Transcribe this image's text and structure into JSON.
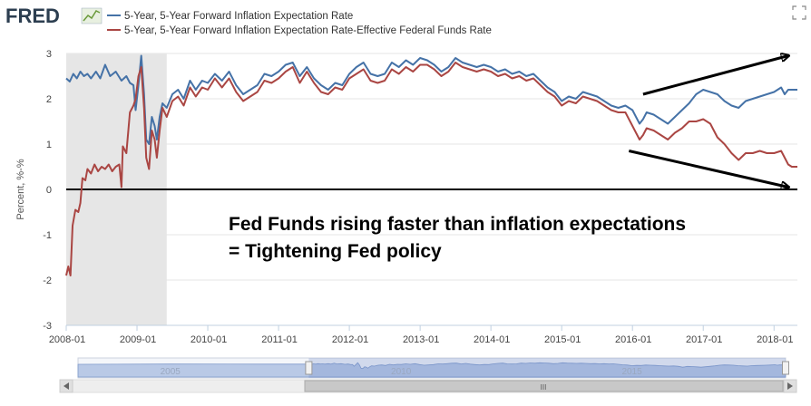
{
  "header": {
    "logo_text": "FRED",
    "logo_icon": "line-chart-icon",
    "fullscreen_icon": "fullscreen-icon"
  },
  "legend": [
    {
      "label": "5-Year, 5-Year Forward Inflation Expectation Rate",
      "color": "#4572a7"
    },
    {
      "label": "5-Year, 5-Year Forward Inflation Expectation Rate-Effective Federal Funds Rate",
      "color": "#aa4643"
    }
  ],
  "chart_data": {
    "type": "line",
    "title": "",
    "xlabel": "",
    "ylabel": "Percent, %-%",
    "ylim": [
      -3,
      3
    ],
    "yticks": [
      3,
      2,
      1,
      0,
      -1,
      -2,
      -3
    ],
    "xlim": [
      2008.0,
      2018.33
    ],
    "xticks": [
      {
        "label": "2008-01",
        "value": 2008.0
      },
      {
        "label": "2009-01",
        "value": 2009.0
      },
      {
        "label": "2010-01",
        "value": 2010.0
      },
      {
        "label": "2011-01",
        "value": 2011.0
      },
      {
        "label": "2012-01",
        "value": 2012.0
      },
      {
        "label": "2013-01",
        "value": 2013.0
      },
      {
        "label": "2014-01",
        "value": 2014.0
      },
      {
        "label": "2015-01",
        "value": 2015.0
      },
      {
        "label": "2016-01",
        "value": 2016.0
      },
      {
        "label": "2017-01",
        "value": 2017.0
      },
      {
        "label": "2018-01",
        "value": 2018.0
      }
    ],
    "recession": {
      "start": 2008.0,
      "end": 2009.42,
      "color": "#e6e6e6"
    },
    "zero_line": 0,
    "series": [
      {
        "name": "5-Year, 5-Year Forward Inflation Expectation Rate",
        "color": "#4572a7",
        "points": [
          [
            2008.0,
            2.45
          ],
          [
            2008.05,
            2.38
          ],
          [
            2008.1,
            2.55
          ],
          [
            2008.15,
            2.45
          ],
          [
            2008.2,
            2.6
          ],
          [
            2008.25,
            2.5
          ],
          [
            2008.3,
            2.55
          ],
          [
            2008.35,
            2.45
          ],
          [
            2008.42,
            2.6
          ],
          [
            2008.48,
            2.45
          ],
          [
            2008.55,
            2.75
          ],
          [
            2008.62,
            2.5
          ],
          [
            2008.7,
            2.6
          ],
          [
            2008.78,
            2.4
          ],
          [
            2008.85,
            2.5
          ],
          [
            2008.9,
            2.35
          ],
          [
            2008.95,
            2.3
          ],
          [
            2008.98,
            1.75
          ],
          [
            2009.02,
            2.3
          ],
          [
            2009.06,
            2.95
          ],
          [
            2009.1,
            2.1
          ],
          [
            2009.13,
            1.1
          ],
          [
            2009.17,
            1.0
          ],
          [
            2009.21,
            1.6
          ],
          [
            2009.25,
            1.4
          ],
          [
            2009.28,
            1.1
          ],
          [
            2009.32,
            1.6
          ],
          [
            2009.36,
            1.9
          ],
          [
            2009.42,
            1.8
          ],
          [
            2009.5,
            2.1
          ],
          [
            2009.58,
            2.2
          ],
          [
            2009.66,
            2.0
          ],
          [
            2009.75,
            2.4
          ],
          [
            2009.83,
            2.2
          ],
          [
            2009.92,
            2.4
          ],
          [
            2010.0,
            2.35
          ],
          [
            2010.1,
            2.55
          ],
          [
            2010.2,
            2.4
          ],
          [
            2010.3,
            2.6
          ],
          [
            2010.4,
            2.3
          ],
          [
            2010.5,
            2.1
          ],
          [
            2010.6,
            2.2
          ],
          [
            2010.7,
            2.3
          ],
          [
            2010.8,
            2.55
          ],
          [
            2010.9,
            2.5
          ],
          [
            2011.0,
            2.6
          ],
          [
            2011.1,
            2.75
          ],
          [
            2011.2,
            2.8
          ],
          [
            2011.3,
            2.5
          ],
          [
            2011.4,
            2.7
          ],
          [
            2011.5,
            2.45
          ],
          [
            2011.6,
            2.3
          ],
          [
            2011.7,
            2.2
          ],
          [
            2011.8,
            2.35
          ],
          [
            2011.9,
            2.3
          ],
          [
            2012.0,
            2.55
          ],
          [
            2012.1,
            2.7
          ],
          [
            2012.2,
            2.8
          ],
          [
            2012.3,
            2.55
          ],
          [
            2012.4,
            2.5
          ],
          [
            2012.5,
            2.55
          ],
          [
            2012.6,
            2.8
          ],
          [
            2012.7,
            2.7
          ],
          [
            2012.8,
            2.85
          ],
          [
            2012.9,
            2.75
          ],
          [
            2013.0,
            2.9
          ],
          [
            2013.1,
            2.85
          ],
          [
            2013.2,
            2.75
          ],
          [
            2013.3,
            2.6
          ],
          [
            2013.4,
            2.7
          ],
          [
            2013.5,
            2.9
          ],
          [
            2013.6,
            2.8
          ],
          [
            2013.7,
            2.75
          ],
          [
            2013.8,
            2.7
          ],
          [
            2013.9,
            2.75
          ],
          [
            2014.0,
            2.7
          ],
          [
            2014.1,
            2.6
          ],
          [
            2014.2,
            2.65
          ],
          [
            2014.3,
            2.55
          ],
          [
            2014.4,
            2.6
          ],
          [
            2014.5,
            2.5
          ],
          [
            2014.6,
            2.55
          ],
          [
            2014.7,
            2.4
          ],
          [
            2014.8,
            2.25
          ],
          [
            2014.9,
            2.15
          ],
          [
            2015.0,
            1.95
          ],
          [
            2015.1,
            2.05
          ],
          [
            2015.2,
            2.0
          ],
          [
            2015.3,
            2.15
          ],
          [
            2015.4,
            2.1
          ],
          [
            2015.5,
            2.05
          ],
          [
            2015.6,
            1.95
          ],
          [
            2015.7,
            1.85
          ],
          [
            2015.8,
            1.8
          ],
          [
            2015.9,
            1.85
          ],
          [
            2016.0,
            1.75
          ],
          [
            2016.05,
            1.6
          ],
          [
            2016.1,
            1.45
          ],
          [
            2016.15,
            1.55
          ],
          [
            2016.2,
            1.7
          ],
          [
            2016.3,
            1.65
          ],
          [
            2016.4,
            1.55
          ],
          [
            2016.5,
            1.45
          ],
          [
            2016.6,
            1.6
          ],
          [
            2016.7,
            1.75
          ],
          [
            2016.8,
            1.9
          ],
          [
            2016.9,
            2.1
          ],
          [
            2017.0,
            2.2
          ],
          [
            2017.1,
            2.15
          ],
          [
            2017.2,
            2.1
          ],
          [
            2017.3,
            1.95
          ],
          [
            2017.4,
            1.85
          ],
          [
            2017.5,
            1.8
          ],
          [
            2017.6,
            1.95
          ],
          [
            2017.7,
            2.0
          ],
          [
            2017.8,
            2.05
          ],
          [
            2017.9,
            2.1
          ],
          [
            2018.0,
            2.15
          ],
          [
            2018.1,
            2.25
          ],
          [
            2018.15,
            2.1
          ],
          [
            2018.2,
            2.2
          ],
          [
            2018.25,
            2.2
          ],
          [
            2018.33,
            2.2
          ]
        ]
      },
      {
        "name": "5-Year, 5-Year Forward Inflation Expectation Rate-Effective Federal Funds Rate",
        "color": "#aa4643",
        "points": [
          [
            2008.0,
            -1.9
          ],
          [
            2008.03,
            -1.7
          ],
          [
            2008.06,
            -1.9
          ],
          [
            2008.09,
            -0.8
          ],
          [
            2008.13,
            -0.45
          ],
          [
            2008.17,
            -0.5
          ],
          [
            2008.2,
            -0.3
          ],
          [
            2008.23,
            0.25
          ],
          [
            2008.27,
            0.2
          ],
          [
            2008.3,
            0.45
          ],
          [
            2008.35,
            0.35
          ],
          [
            2008.4,
            0.55
          ],
          [
            2008.45,
            0.4
          ],
          [
            2008.5,
            0.5
          ],
          [
            2008.55,
            0.45
          ],
          [
            2008.6,
            0.55
          ],
          [
            2008.65,
            0.4
          ],
          [
            2008.7,
            0.5
          ],
          [
            2008.75,
            0.55
          ],
          [
            2008.78,
            0.05
          ],
          [
            2008.8,
            0.95
          ],
          [
            2008.85,
            0.8
          ],
          [
            2008.9,
            1.7
          ],
          [
            2008.95,
            1.85
          ],
          [
            2008.98,
            2.0
          ],
          [
            2009.02,
            2.5
          ],
          [
            2009.06,
            2.7
          ],
          [
            2009.1,
            1.8
          ],
          [
            2009.13,
            0.7
          ],
          [
            2009.17,
            0.45
          ],
          [
            2009.21,
            1.3
          ],
          [
            2009.25,
            1.1
          ],
          [
            2009.28,
            0.7
          ],
          [
            2009.32,
            1.3
          ],
          [
            2009.36,
            1.8
          ],
          [
            2009.42,
            1.6
          ],
          [
            2009.5,
            1.95
          ],
          [
            2009.58,
            2.05
          ],
          [
            2009.66,
            1.85
          ],
          [
            2009.75,
            2.25
          ],
          [
            2009.83,
            2.05
          ],
          [
            2009.92,
            2.25
          ],
          [
            2010.0,
            2.2
          ],
          [
            2010.1,
            2.45
          ],
          [
            2010.2,
            2.25
          ],
          [
            2010.3,
            2.45
          ],
          [
            2010.4,
            2.15
          ],
          [
            2010.5,
            1.95
          ],
          [
            2010.6,
            2.05
          ],
          [
            2010.7,
            2.15
          ],
          [
            2010.8,
            2.4
          ],
          [
            2010.9,
            2.35
          ],
          [
            2011.0,
            2.45
          ],
          [
            2011.1,
            2.6
          ],
          [
            2011.2,
            2.7
          ],
          [
            2011.3,
            2.35
          ],
          [
            2011.4,
            2.6
          ],
          [
            2011.5,
            2.35
          ],
          [
            2011.6,
            2.15
          ],
          [
            2011.7,
            2.1
          ],
          [
            2011.8,
            2.25
          ],
          [
            2011.9,
            2.2
          ],
          [
            2012.0,
            2.45
          ],
          [
            2012.1,
            2.55
          ],
          [
            2012.2,
            2.65
          ],
          [
            2012.3,
            2.4
          ],
          [
            2012.4,
            2.35
          ],
          [
            2012.5,
            2.4
          ],
          [
            2012.6,
            2.65
          ],
          [
            2012.7,
            2.55
          ],
          [
            2012.8,
            2.7
          ],
          [
            2012.9,
            2.6
          ],
          [
            2013.0,
            2.75
          ],
          [
            2013.1,
            2.75
          ],
          [
            2013.2,
            2.65
          ],
          [
            2013.3,
            2.5
          ],
          [
            2013.4,
            2.6
          ],
          [
            2013.5,
            2.8
          ],
          [
            2013.6,
            2.7
          ],
          [
            2013.7,
            2.65
          ],
          [
            2013.8,
            2.6
          ],
          [
            2013.9,
            2.65
          ],
          [
            2014.0,
            2.6
          ],
          [
            2014.1,
            2.5
          ],
          [
            2014.2,
            2.55
          ],
          [
            2014.3,
            2.45
          ],
          [
            2014.4,
            2.5
          ],
          [
            2014.5,
            2.4
          ],
          [
            2014.6,
            2.45
          ],
          [
            2014.7,
            2.3
          ],
          [
            2014.8,
            2.15
          ],
          [
            2014.9,
            2.05
          ],
          [
            2015.0,
            1.85
          ],
          [
            2015.1,
            1.95
          ],
          [
            2015.2,
            1.9
          ],
          [
            2015.3,
            2.05
          ],
          [
            2015.4,
            2.0
          ],
          [
            2015.5,
            1.95
          ],
          [
            2015.6,
            1.85
          ],
          [
            2015.7,
            1.75
          ],
          [
            2015.8,
            1.7
          ],
          [
            2015.9,
            1.7
          ],
          [
            2016.0,
            1.4
          ],
          [
            2016.05,
            1.25
          ],
          [
            2016.1,
            1.1
          ],
          [
            2016.15,
            1.2
          ],
          [
            2016.2,
            1.35
          ],
          [
            2016.3,
            1.3
          ],
          [
            2016.4,
            1.2
          ],
          [
            2016.5,
            1.1
          ],
          [
            2016.6,
            1.25
          ],
          [
            2016.7,
            1.35
          ],
          [
            2016.8,
            1.5
          ],
          [
            2016.9,
            1.5
          ],
          [
            2017.0,
            1.55
          ],
          [
            2017.1,
            1.45
          ],
          [
            2017.2,
            1.15
          ],
          [
            2017.3,
            1.0
          ],
          [
            2017.4,
            0.8
          ],
          [
            2017.5,
            0.65
          ],
          [
            2017.6,
            0.8
          ],
          [
            2017.7,
            0.8
          ],
          [
            2017.8,
            0.85
          ],
          [
            2017.9,
            0.8
          ],
          [
            2018.0,
            0.8
          ],
          [
            2018.1,
            0.85
          ],
          [
            2018.15,
            0.7
          ],
          [
            2018.2,
            0.55
          ],
          [
            2018.25,
            0.5
          ],
          [
            2018.33,
            0.5
          ]
        ]
      }
    ],
    "annotations": {
      "text_lines": [
        "Fed Funds rising faster than inflation expectations",
        "= Tightening Fed policy"
      ],
      "arrows": [
        {
          "from": [
            2016.15,
            2.1
          ],
          "to": [
            2018.2,
            2.95
          ]
        },
        {
          "from": [
            2015.95,
            0.85
          ],
          "to": [
            2018.2,
            0.05
          ]
        }
      ]
    }
  },
  "navigator": {
    "year_labels": [
      {
        "label": "2005",
        "value": 2005
      },
      {
        "label": "2010",
        "value": 2010
      },
      {
        "label": "2015",
        "value": 2015
      }
    ],
    "range": [
      2003.0,
      2018.33
    ],
    "selection": [
      2008.0,
      2018.33
    ],
    "scroll_grip_label": "III",
    "left_arrow": "scroll-left-icon",
    "right_arrow": "scroll-right-icon"
  }
}
